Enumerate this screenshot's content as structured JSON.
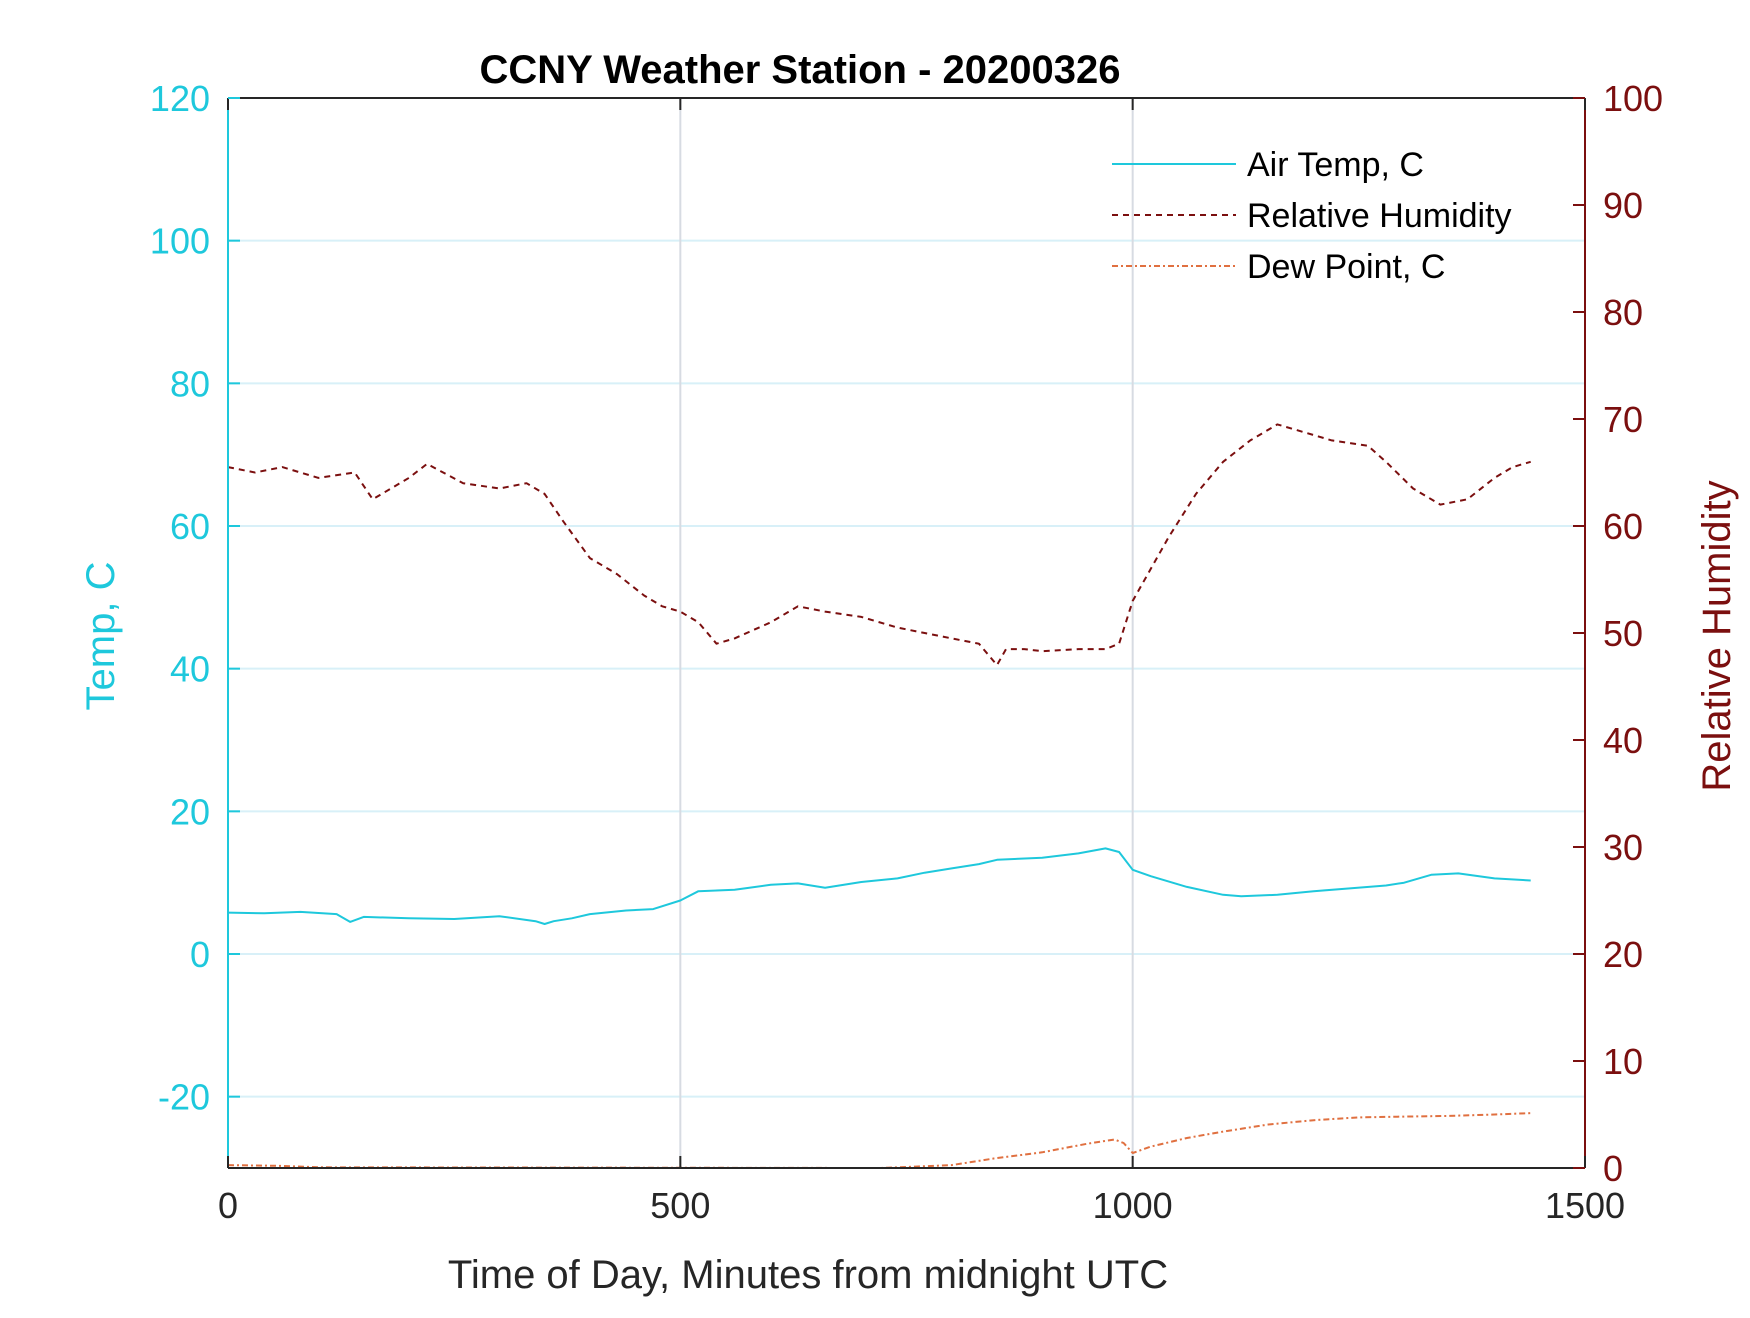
{
  "chart_data": {
    "type": "line",
    "title": "CCNY Weather Station - 20200326",
    "xlabel": "Time of Day, Minutes from midnight UTC",
    "ylabel_left": "Temp, C",
    "ylabel_right": "Relative Humidity",
    "xlim": [
      0,
      1500
    ],
    "ylim_left": [
      -30,
      120
    ],
    "ylim_right": [
      0,
      100
    ],
    "xticks": [
      0,
      500,
      1000,
      1500
    ],
    "yticks_left": [
      -20,
      0,
      20,
      40,
      60,
      80,
      100,
      120
    ],
    "yticks_right": [
      0,
      10,
      20,
      30,
      40,
      50,
      60,
      70,
      80,
      90,
      100
    ],
    "grid": true,
    "legend_position": "top-right",
    "colors": {
      "left_axis": "#1ec8dc",
      "right_axis": "#7b0f0f",
      "dew": "#e07040",
      "grid": "#d8f0f8"
    },
    "series": [
      {
        "name": "Air Temp, C",
        "axis": "left",
        "color": "#1ec8dc",
        "style": "solid",
        "x": [
          0,
          40,
          80,
          120,
          135,
          150,
          200,
          250,
          300,
          340,
          350,
          360,
          380,
          400,
          440,
          470,
          500,
          520,
          560,
          600,
          630,
          660,
          700,
          740,
          770,
          800,
          830,
          850,
          900,
          940,
          970,
          985,
          1000,
          1020,
          1060,
          1100,
          1120,
          1160,
          1200,
          1240,
          1280,
          1300,
          1330,
          1360,
          1400,
          1440
        ],
        "y": [
          5.8,
          5.7,
          5.9,
          5.6,
          4.5,
          5.2,
          5.0,
          4.9,
          5.3,
          4.6,
          4.2,
          4.6,
          5.0,
          5.6,
          6.1,
          6.3,
          7.5,
          8.8,
          9.0,
          9.7,
          9.9,
          9.3,
          10.1,
          10.6,
          11.4,
          12.0,
          12.6,
          13.2,
          13.5,
          14.1,
          14.8,
          14.3,
          11.8,
          10.9,
          9.4,
          8.3,
          8.1,
          8.3,
          8.8,
          9.2,
          9.6,
          10.0,
          11.1,
          11.3,
          10.6,
          10.3
        ]
      },
      {
        "name": "Relative Humidity",
        "axis": "right",
        "color": "#7b0f0f",
        "style": "dashed",
        "x": [
          0,
          30,
          60,
          100,
          140,
          160,
          200,
          220,
          260,
          300,
          330,
          350,
          370,
          400,
          430,
          460,
          480,
          500,
          520,
          540,
          560,
          600,
          630,
          660,
          700,
          740,
          770,
          800,
          830,
          850,
          860,
          880,
          900,
          940,
          970,
          985,
          1000,
          1020,
          1040,
          1070,
          1100,
          1130,
          1160,
          1180,
          1220,
          1260,
          1280,
          1310,
          1340,
          1370,
          1400,
          1420,
          1440
        ],
        "y": [
          65.5,
          65.0,
          65.5,
          64.5,
          65.0,
          62.5,
          64.5,
          65.8,
          64.0,
          63.5,
          64.0,
          63.0,
          60.5,
          57.0,
          55.5,
          53.5,
          52.5,
          52.0,
          51.0,
          49.0,
          49.5,
          51.0,
          52.5,
          52.0,
          51.5,
          50.5,
          50.0,
          49.5,
          49.0,
          47.0,
          48.5,
          48.5,
          48.3,
          48.5,
          48.5,
          49.0,
          53.0,
          56.0,
          59.0,
          63.0,
          66.0,
          68.0,
          69.5,
          69.0,
          68.0,
          67.5,
          66.0,
          63.5,
          62.0,
          62.5,
          64.5,
          65.5,
          66.0
        ]
      },
      {
        "name": "Dew Point, C",
        "axis": "left",
        "color": "#e07040",
        "style": "dashdot",
        "x": [
          0,
          60,
          100,
          720,
          760,
          800,
          850,
          900,
          950,
          980,
          990,
          1000,
          1020,
          1060,
          1100,
          1150,
          1200,
          1250,
          1300,
          1350,
          1400,
          1440
        ],
        "y": [
          -29.6,
          -29.7,
          -29.9,
          -30.0,
          -29.8,
          -29.6,
          -28.6,
          -27.8,
          -26.6,
          -26.0,
          -26.5,
          -27.9,
          -27.0,
          -25.8,
          -24.9,
          -23.9,
          -23.3,
          -22.9,
          -22.8,
          -22.7,
          -22.5,
          -22.3
        ]
      }
    ]
  }
}
